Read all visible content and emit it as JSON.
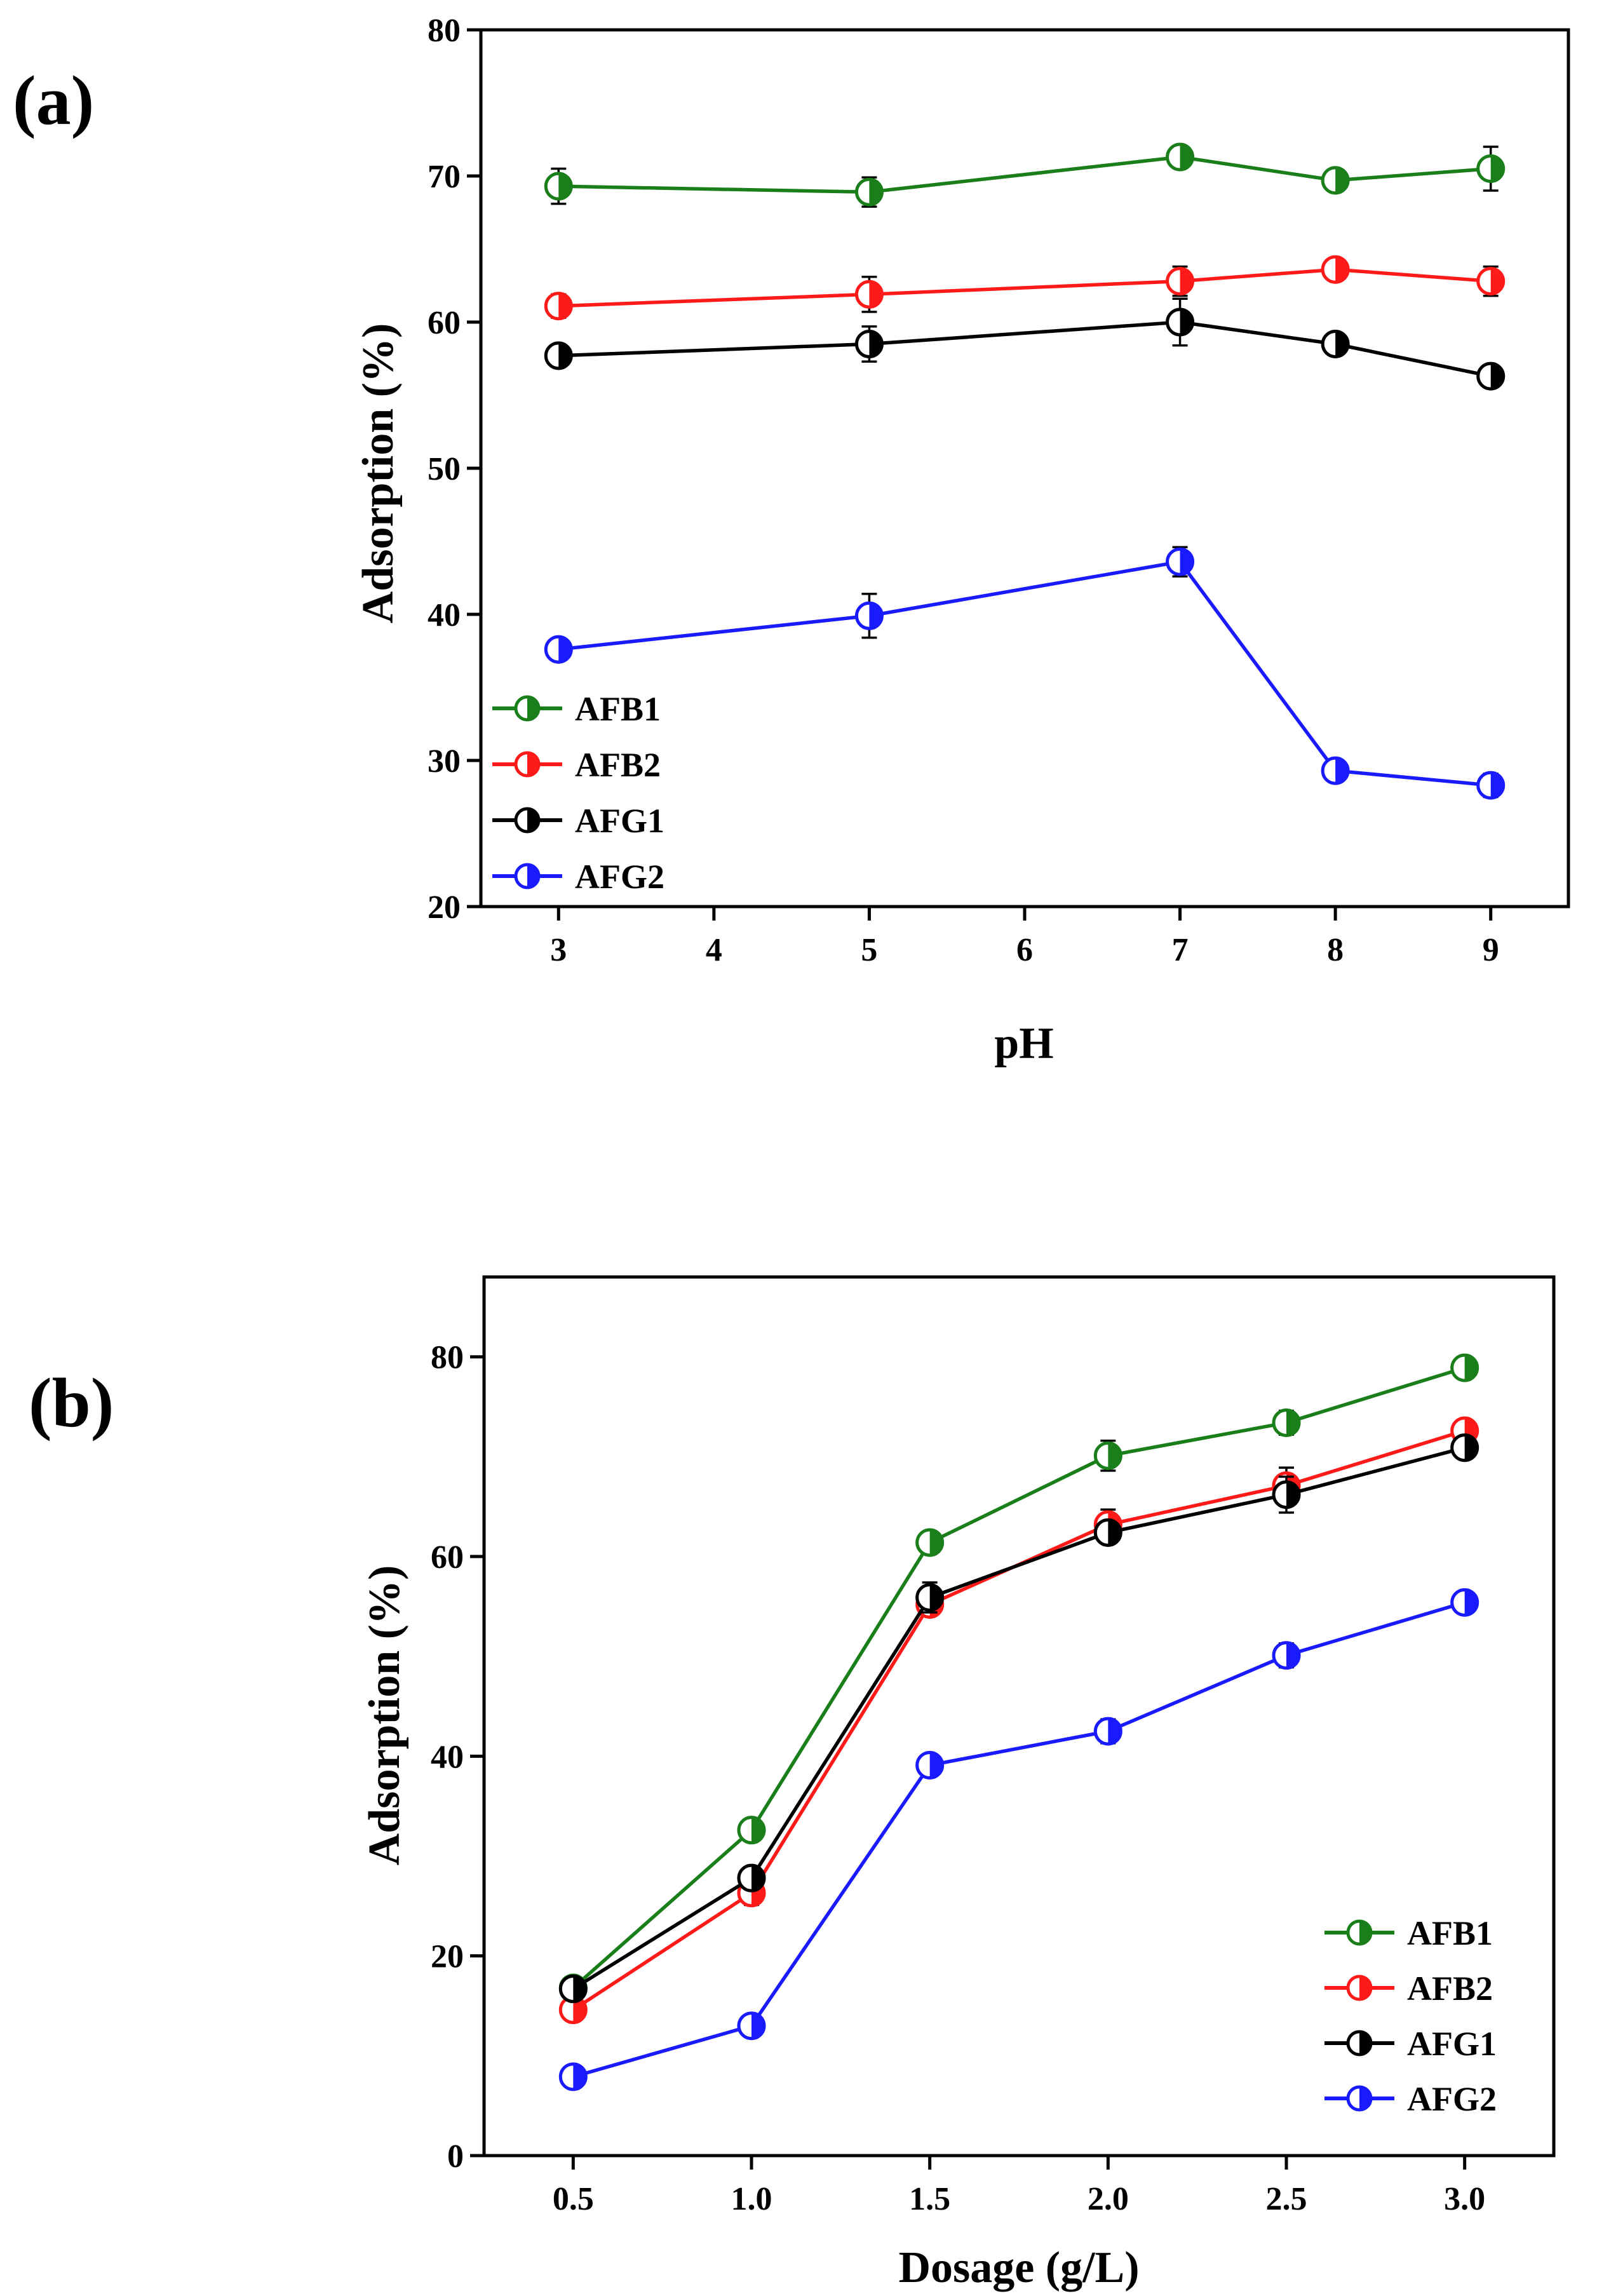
{
  "colors": {
    "AFB1": "#1a7f1a",
    "AFB2": "#ff1a1a",
    "AFG1": "#000000",
    "AFG2": "#1a1aff"
  },
  "chart_data": [
    {
      "panel_label": "(a)",
      "type": "line",
      "xlabel": "pH",
      "ylabel": "Adsorption (%)",
      "xlim": [
        2.5,
        9.5
      ],
      "ylim": [
        20,
        80
      ],
      "xticks": [
        3,
        4,
        5,
        6,
        7,
        8,
        9
      ],
      "yticks": [
        20,
        30,
        40,
        50,
        60,
        70,
        80
      ],
      "x": [
        3,
        5,
        7,
        8,
        9
      ],
      "legend_position": "bottom-left",
      "marker": "half-filled-circle",
      "error_bars": true,
      "series": [
        {
          "name": "AFB1",
          "color": "#1a7f1a",
          "values": [
            69.3,
            68.9,
            71.3,
            69.7,
            70.5
          ],
          "errors": [
            1.2,
            1.0,
            0.7,
            0.6,
            1.5
          ]
        },
        {
          "name": "AFB2",
          "color": "#ff1a1a",
          "values": [
            61.1,
            61.9,
            62.8,
            63.6,
            62.8
          ],
          "errors": [
            0.8,
            1.2,
            1.0,
            0.5,
            1.0
          ]
        },
        {
          "name": "AFG1",
          "color": "#000000",
          "values": [
            57.7,
            58.5,
            60.0,
            58.5,
            56.3
          ],
          "errors": [
            0.4,
            1.2,
            1.6,
            0.7,
            0.4
          ]
        },
        {
          "name": "AFG2",
          "color": "#1a1aff",
          "values": [
            37.6,
            39.9,
            43.6,
            29.3,
            28.3
          ],
          "errors": [
            0.5,
            1.5,
            1.0,
            0.4,
            0.8
          ]
        }
      ]
    },
    {
      "panel_label": "(b)",
      "type": "line",
      "xlabel": "Dosage (g/L)",
      "ylabel": "Adsorption (%)",
      "xlim": [
        0.25,
        3.25
      ],
      "ylim": [
        0,
        88
      ],
      "xticks": [
        "0.5",
        "1.0",
        "1.5",
        "2.0",
        "2.5",
        "3.0"
      ],
      "yticks": [
        0,
        20,
        40,
        60,
        80
      ],
      "x": [
        0.5,
        1.0,
        1.5,
        2.0,
        2.5,
        3.0
      ],
      "legend_position": "bottom-right",
      "marker": "half-filled-circle",
      "error_bars": true,
      "series": [
        {
          "name": "AFB1",
          "color": "#1a7f1a",
          "values": [
            16.8,
            32.6,
            61.4,
            70.1,
            73.4,
            78.9
          ],
          "errors": [
            0.6,
            0.8,
            0.9,
            1.5,
            1.2,
            0.6
          ]
        },
        {
          "name": "AFB2",
          "color": "#ff1a1a",
          "values": [
            14.6,
            26.3,
            55.2,
            63.2,
            67.1,
            72.6
          ],
          "errors": [
            1.0,
            1.2,
            1.0,
            1.5,
            1.8,
            0.8
          ]
        },
        {
          "name": "AFG1",
          "color": "#000000",
          "values": [
            16.7,
            27.8,
            55.9,
            62.4,
            66.2,
            70.9
          ],
          "errors": [
            0.5,
            0.9,
            1.5,
            1.0,
            1.8,
            0.9
          ]
        },
        {
          "name": "AFG2",
          "color": "#1a1aff",
          "values": [
            7.9,
            13.0,
            39.1,
            42.5,
            50.1,
            55.4
          ],
          "errors": [
            0.5,
            0.5,
            0.5,
            1.2,
            1.2,
            0.5
          ]
        }
      ]
    }
  ]
}
